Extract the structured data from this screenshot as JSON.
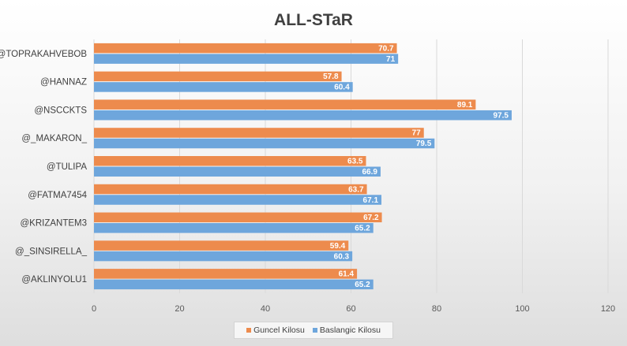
{
  "chart_data": {
    "type": "bar",
    "orientation": "horizontal",
    "title": "ALL-STaR",
    "categories": [
      "@TOPRAKAHVEBOB",
      "@HANNAZ",
      "@NSCCKTS",
      "@_MAKARON_",
      "@TULIPA",
      "@FATMA7454",
      "@KRIZANTEM3",
      "@_SINSIRELLA_",
      "@AKLINYOLU1"
    ],
    "series": [
      {
        "name": "Guncel Kilosu",
        "color": "#ed8b4d",
        "values": [
          70.7,
          57.8,
          89.1,
          77,
          63.5,
          63.7,
          67.2,
          59.4,
          61.4
        ],
        "labels": [
          "70.7",
          "57.8",
          "89.1",
          "77",
          "63.5",
          "63.7",
          "67.2",
          "59.4",
          "61.4"
        ]
      },
      {
        "name": "Baslangic Kilosu",
        "color": "#6ea6dc",
        "values": [
          71,
          60.4,
          97.5,
          79.5,
          66.9,
          67.1,
          65.2,
          60.3,
          65.2
        ],
        "labels": [
          "71",
          "60.4",
          "97.5",
          "79.5",
          "66.9",
          "67.1",
          "65.2",
          "60.3",
          "65.2"
        ]
      }
    ],
    "xlim": [
      0,
      120
    ],
    "xticks": [
      0,
      20,
      40,
      60,
      80,
      100,
      120
    ],
    "xtick_labels": [
      "0",
      "20",
      "40",
      "60",
      "80",
      "100",
      "120"
    ],
    "xlabel": "",
    "ylabel": "",
    "grid": true,
    "legend_position": "bottom"
  }
}
